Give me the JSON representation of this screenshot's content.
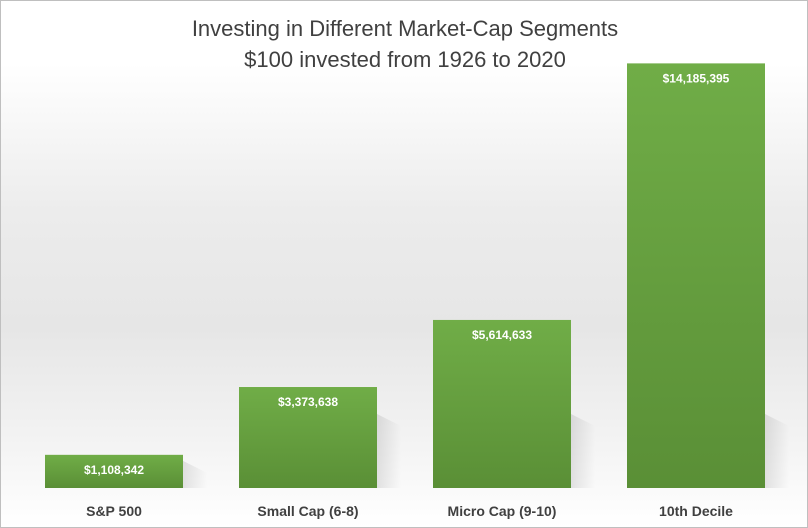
{
  "chart_data": {
    "type": "bar",
    "title": "Investing in Different Market-Cap Segments",
    "subtitle": "$100 invested from 1926 to 2020",
    "categories": [
      "S&P 500",
      "Small Cap (6-8)",
      "Micro Cap (9-10)",
      "10th Decile"
    ],
    "values": [
      1108342,
      3373638,
      5614633,
      14185395
    ],
    "value_labels": [
      "$1,108,342",
      "$3,373,638",
      "$5,614,633",
      "$14,185,395"
    ],
    "xlabel": "",
    "ylabel": "",
    "ylim": [
      0,
      15000000
    ],
    "grid": false,
    "legend": "none",
    "colors": {
      "bar_top": "#70ad47",
      "bar_bottom": "#5a8f36",
      "label_text": "#ffffff"
    }
  }
}
